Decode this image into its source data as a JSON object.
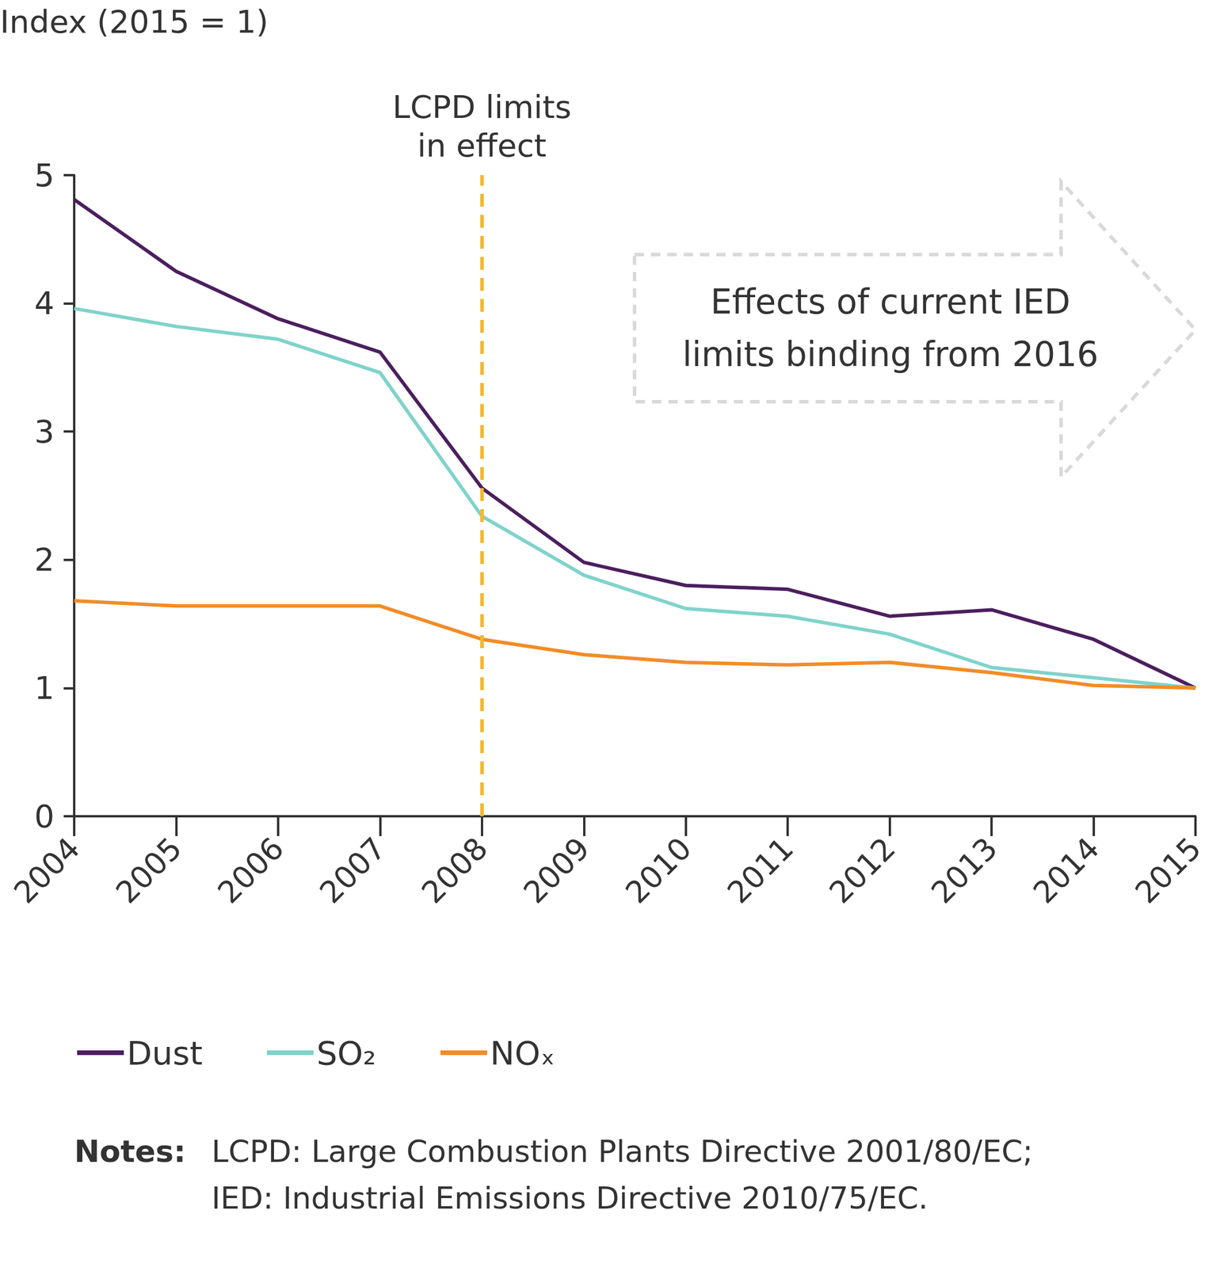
{
  "chart_data": {
    "type": "line",
    "y_label": "Index (2015 = 1)",
    "categories": [
      "2004",
      "2005",
      "2006",
      "2007",
      "2008",
      "2009",
      "2010",
      "2011",
      "2012",
      "2013",
      "2014",
      "2015"
    ],
    "series": [
      {
        "name": "Dust",
        "color": "#4b1f5f",
        "values": [
          4.81,
          4.25,
          3.88,
          3.62,
          2.56,
          1.98,
          1.8,
          1.77,
          1.56,
          1.61,
          1.38,
          1.0
        ]
      },
      {
        "name": "SO₂",
        "color": "#7fd3cb",
        "values": [
          3.96,
          3.82,
          3.72,
          3.46,
          2.34,
          1.88,
          1.62,
          1.56,
          1.42,
          1.16,
          1.08,
          1.0
        ]
      },
      {
        "name": "NOₓ",
        "color": "#f28c28",
        "values": [
          1.68,
          1.64,
          1.64,
          1.64,
          1.38,
          1.26,
          1.2,
          1.18,
          1.2,
          1.12,
          1.02,
          1.0
        ]
      }
    ],
    "ylim": [
      0,
      5
    ],
    "yticks": [
      0,
      1,
      2,
      3,
      4,
      5
    ],
    "grid": false,
    "legend": "bottom",
    "annotations": [
      {
        "text": "LCPD limits\nin effect",
        "x": "2008",
        "color": "#f5b731"
      },
      {
        "text": "Effects of current IED\nlimits binding from 2016"
      }
    ],
    "notes": {
      "label": "Notes:",
      "lines": [
        "LCPD: Large Combustion Plants Directive 2001/80/EC;",
        "IED: Industrial Emissions Directive 2010/75/EC."
      ]
    }
  }
}
